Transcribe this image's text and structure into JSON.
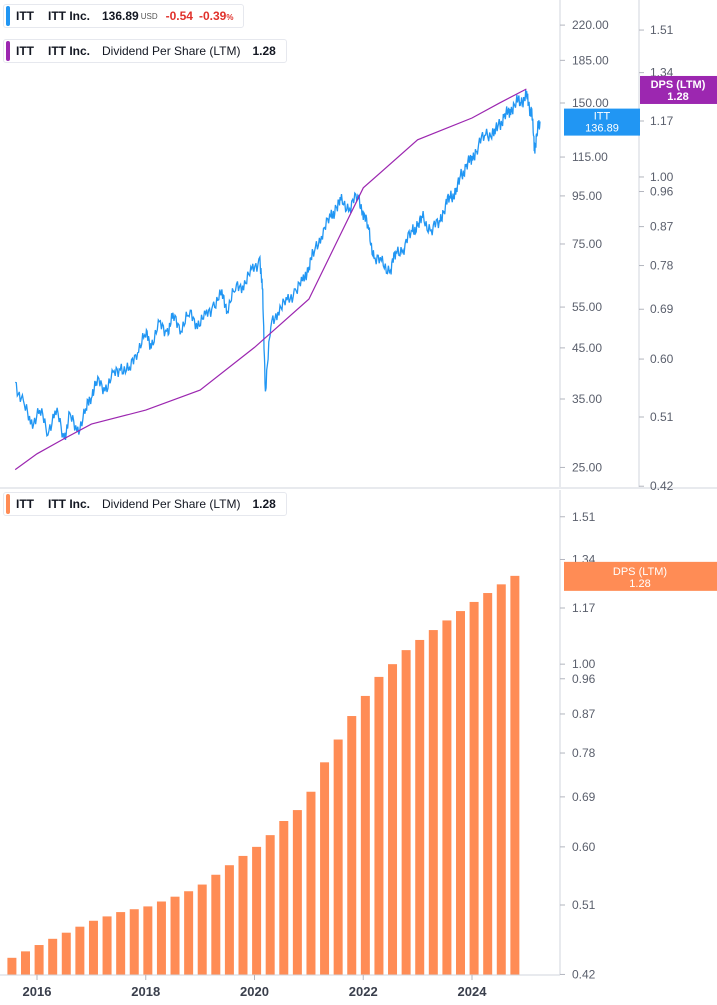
{
  "colors": {
    "price": "#2196f3",
    "dps_line": "#9c27b0",
    "bars": "#ff8c55",
    "negative": "#e0312b",
    "gridline": "#e0e3eb"
  },
  "legend_price": {
    "ticker": "ITT",
    "name": "ITT Inc.",
    "value": "136.89",
    "unit": "USD",
    "change": "-0.54",
    "change_pct": "-0.39",
    "pct_sign": "%"
  },
  "legend_dps_top": {
    "ticker": "ITT",
    "name": "ITT Inc.",
    "metric": "Dividend Per Share (LTM)",
    "value": "1.28"
  },
  "legend_dps_bottom": {
    "ticker": "ITT",
    "name": "ITT Inc.",
    "metric": "Dividend Per Share (LTM)",
    "value": "1.28"
  },
  "badges": {
    "price_label": "ITT",
    "price_value": "136.89",
    "dps_top_label": "DPS (LTM)",
    "dps_top_value": "1.28",
    "dps_bottom_label": "DPS (LTM)",
    "dps_bottom_value": "1.28"
  },
  "chart_data": [
    {
      "type": "line",
      "title": "",
      "scale": "log",
      "x_range": [
        2015.6,
        2025.3
      ],
      "price_axis_ticks": [
        "220.00",
        "185.00",
        "150.00",
        "115.00",
        "95.00",
        "75.00",
        "55.00",
        "45.00",
        "35.00",
        "25.00"
      ],
      "dps_axis_ticks": [
        "1.51",
        "1.34",
        "1.17",
        "1.00",
        "0.96",
        "0.87",
        "0.78",
        "0.69",
        "0.60",
        "0.51",
        "0.42"
      ],
      "series": [
        {
          "kind": "price",
          "x": [
            2015.6,
            2015.75,
            2015.9,
            2016.05,
            2016.2,
            2016.35,
            2016.5,
            2016.6,
            2016.75,
            2016.9,
            2017.0,
            2017.1,
            2017.25,
            2017.4,
            2017.55,
            2017.7,
            2017.85,
            2018.0,
            2018.1,
            2018.25,
            2018.4,
            2018.5,
            2018.65,
            2018.8,
            2018.95,
            2019.1,
            2019.25,
            2019.4,
            2019.5,
            2019.65,
            2019.8,
            2019.95,
            2020.1,
            2020.15,
            2020.2,
            2020.3,
            2020.45,
            2020.6,
            2020.75,
            2020.9,
            2021.0,
            2021.1,
            2021.25,
            2021.4,
            2021.5,
            2021.6,
            2021.75,
            2021.9,
            2022.0,
            2022.1,
            2022.2,
            2022.35,
            2022.5,
            2022.6,
            2022.75,
            2022.9,
            2023.0,
            2023.1,
            2023.25,
            2023.4,
            2023.5,
            2023.6,
            2023.7,
            2023.8,
            2023.9,
            2024.0,
            2024.1,
            2024.25,
            2024.4,
            2024.5,
            2024.6,
            2024.7,
            2024.8,
            2024.9,
            2025.0,
            2025.05,
            2025.1,
            2025.15,
            2025.2,
            2025.25
          ],
          "y": [
            38,
            34,
            31,
            33,
            30,
            33,
            29,
            32,
            30,
            33,
            36,
            38,
            37,
            39,
            41,
            40,
            45,
            48,
            46,
            50,
            49,
            52,
            50,
            53,
            51,
            52,
            56,
            58,
            55,
            60,
            62,
            65,
            70,
            58,
            37,
            50,
            55,
            56,
            60,
            62,
            68,
            72,
            80,
            85,
            90,
            92,
            90,
            95,
            88,
            80,
            70,
            68,
            66,
            72,
            74,
            80,
            82,
            85,
            80,
            84,
            90,
            95,
            96,
            105,
            110,
            115,
            120,
            130,
            128,
            135,
            140,
            145,
            150,
            152,
            155,
            148,
            142,
            120,
            130,
            137
          ]
        },
        {
          "kind": "dps",
          "name": "Dividend Per Share (LTM)",
          "x": [
            2015.6,
            2016.0,
            2016.5,
            2017.0,
            2018.0,
            2019.0,
            2020.0,
            2021.0,
            2021.5,
            2022.0,
            2023.0,
            2024.0,
            2024.5,
            2025.0
          ],
          "y": [
            0.44,
            0.46,
            0.48,
            0.5,
            0.52,
            0.55,
            0.62,
            0.71,
            0.83,
            0.97,
            1.11,
            1.18,
            1.23,
            1.28
          ]
        }
      ]
    },
    {
      "type": "bar",
      "title": "",
      "scale": "log",
      "series_name": "Dividend Per Share (LTM)",
      "x_ticks": [
        "2016",
        "2018",
        "2020",
        "2022",
        "2024"
      ],
      "y_ticks": [
        "1.51",
        "1.34",
        "1.17",
        "1.00",
        "0.96",
        "0.87",
        "0.78",
        "0.69",
        "0.60",
        "0.51",
        "0.42"
      ],
      "x": [
        2015.75,
        2016.0,
        2016.25,
        2016.5,
        2016.75,
        2017.0,
        2017.25,
        2017.5,
        2017.75,
        2018.0,
        2018.25,
        2018.5,
        2018.75,
        2019.0,
        2019.25,
        2019.5,
        2019.75,
        2020.0,
        2020.25,
        2020.5,
        2020.75,
        2021.0,
        2021.25,
        2021.5,
        2021.75,
        2022.0,
        2022.25,
        2022.5,
        2022.75,
        2023.0,
        2023.25,
        2023.5,
        2023.75,
        2024.0,
        2024.25,
        2024.5,
        2024.75,
        2025.0
      ],
      "values": [
        0.44,
        0.448,
        0.456,
        0.464,
        0.472,
        0.48,
        0.488,
        0.494,
        0.5,
        0.504,
        0.508,
        0.515,
        0.522,
        0.53,
        0.54,
        0.555,
        0.57,
        0.585,
        0.6,
        0.62,
        0.645,
        0.665,
        0.7,
        0.76,
        0.81,
        0.865,
        0.915,
        0.965,
        1.0,
        1.04,
        1.07,
        1.1,
        1.13,
        1.16,
        1.19,
        1.22,
        1.25,
        1.28
      ]
    }
  ]
}
